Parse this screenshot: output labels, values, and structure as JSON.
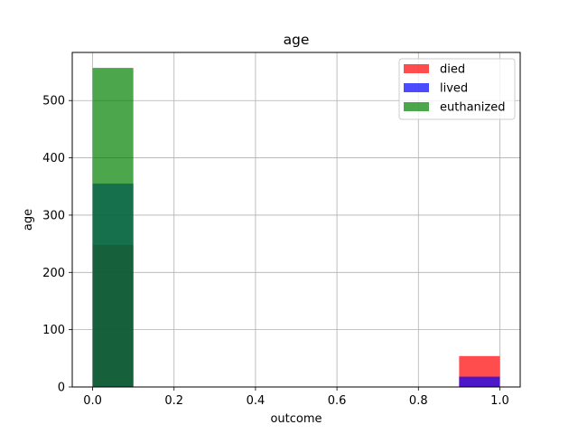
{
  "chart_data": {
    "type": "bar",
    "title": "age",
    "xlabel": "outcome",
    "ylabel": "age",
    "xlim": [
      -0.05,
      1.05
    ],
    "ylim": [
      0,
      584
    ],
    "xticks": [
      0.0,
      0.2,
      0.4,
      0.6,
      0.8,
      1.0
    ],
    "xtick_labels": [
      "0.0",
      "0.2",
      "0.4",
      "0.6",
      "0.8",
      "1.0"
    ],
    "yticks": [
      0,
      100,
      200,
      300,
      400,
      500
    ],
    "ytick_labels": [
      "0",
      "100",
      "200",
      "300",
      "400",
      "500"
    ],
    "grid": true,
    "legend_position": "top-right",
    "bins": [
      [
        0.0,
        0.1
      ],
      [
        0.9,
        1.0
      ]
    ],
    "series": [
      {
        "name": "died",
        "color": "#ff0000",
        "opacity": 0.7,
        "values": [
          248,
          54
        ]
      },
      {
        "name": "lived",
        "color": "#0000ff",
        "opacity": 0.7,
        "values": [
          355,
          18
        ]
      },
      {
        "name": "euthanized",
        "color": "#008000",
        "opacity": 0.7,
        "values": [
          557,
          0
        ]
      }
    ]
  }
}
